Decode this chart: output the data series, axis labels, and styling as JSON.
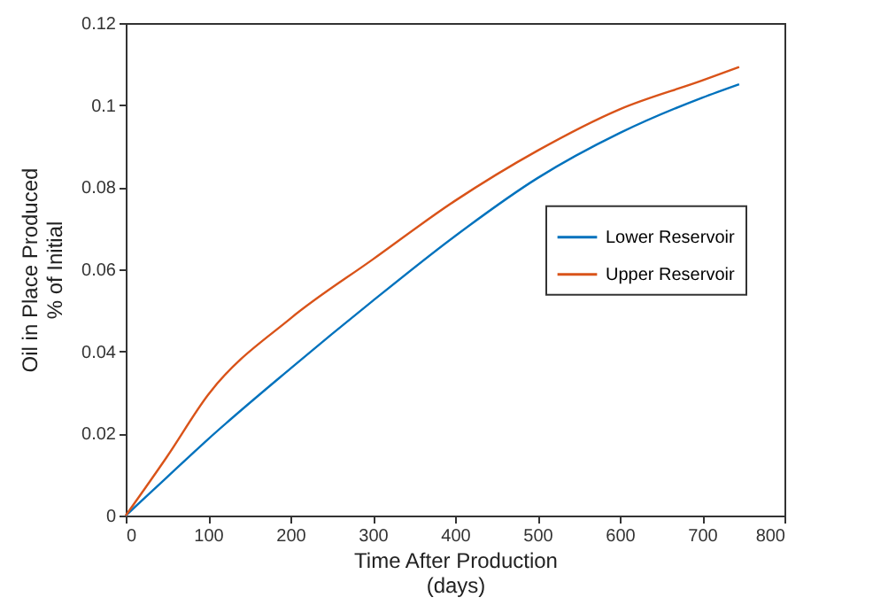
{
  "chart_data": {
    "type": "line",
    "xlabel": "Time After Production\n(days)",
    "ylabel": "Oil in Place Produced\n% of Initial",
    "x": [
      0,
      50,
      100,
      200,
      300,
      400,
      500,
      600,
      700,
      745
    ],
    "series": [
      {
        "name": "Lower Reservoir",
        "color": "#0072bd",
        "values": [
          0,
          0.0093,
          0.0186,
          0.0358,
          0.0523,
          0.0681,
          0.0822,
          0.0932,
          0.1018,
          0.1051
        ]
      },
      {
        "name": "Upper Reservoir",
        "color": "#d95319",
        "values": [
          0,
          0.0143,
          0.0294,
          0.048,
          0.0624,
          0.0767,
          0.0889,
          0.099,
          0.106,
          0.1093
        ]
      }
    ],
    "xlim": [
      0,
      800
    ],
    "xticks": [
      0,
      100,
      200,
      300,
      400,
      500,
      600,
      700,
      800
    ],
    "ylim": [
      0,
      0.12
    ],
    "yticks": [
      0,
      0.02,
      0.04,
      0.06,
      0.08,
      0.1,
      0.12
    ],
    "legend": "right",
    "grid": false,
    "marker": "none",
    "line_style": "solid"
  }
}
